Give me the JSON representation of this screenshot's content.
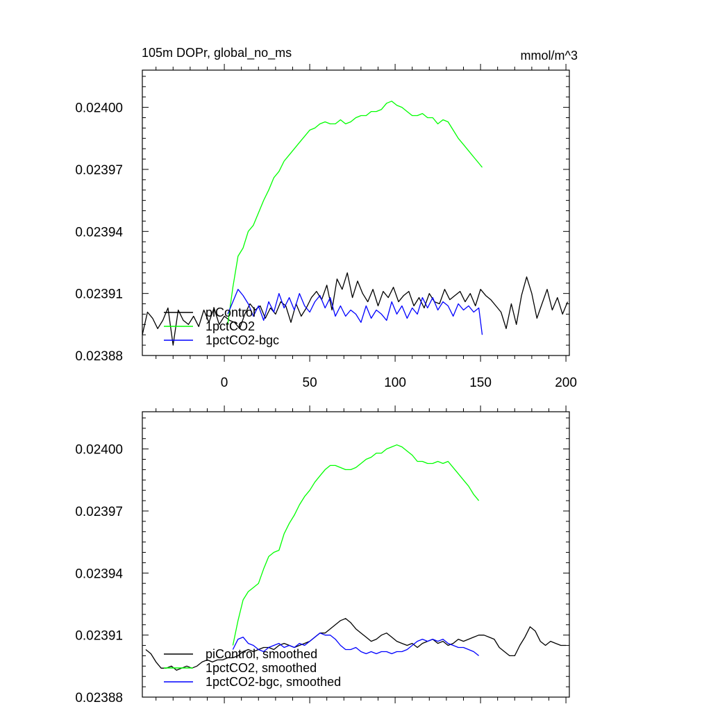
{
  "chart_data": [
    {
      "type": "line",
      "title": "105m DOPr, global_no_ms",
      "units": "mmol/m^3",
      "xlim": [
        -48,
        202
      ],
      "ylim": [
        0.02388,
        0.024018
      ],
      "xticks": [
        0,
        50,
        100,
        150,
        200
      ],
      "xtick_labels": [
        "0",
        "50",
        "100",
        "150",
        "200"
      ],
      "yticks": [
        0.02388,
        0.02391,
        0.02394,
        0.02397,
        0.024
      ],
      "ytick_labels": [
        "0.02388",
        "0.02391",
        "0.02394",
        "0.02397",
        "0.02400"
      ],
      "legend_position": "bottom-left",
      "series": [
        {
          "name": "piControl",
          "color": "#000000",
          "x": [
            -48,
            -45,
            -42,
            -39,
            -36,
            -33,
            -30,
            -27,
            -24,
            -21,
            -18,
            -15,
            -12,
            -9,
            -6,
            -3,
            0,
            3,
            6,
            9,
            12,
            15,
            18,
            21,
            24,
            27,
            30,
            33,
            36,
            39,
            42,
            45,
            48,
            51,
            54,
            57,
            60,
            63,
            66,
            69,
            72,
            75,
            78,
            81,
            84,
            87,
            90,
            93,
            96,
            99,
            102,
            105,
            108,
            111,
            114,
            117,
            120,
            123,
            126,
            129,
            132,
            135,
            138,
            141,
            144,
            147,
            150,
            153,
            156,
            159,
            162,
            165,
            168,
            171,
            174,
            177,
            180,
            183,
            186,
            189,
            192,
            195,
            198,
            201
          ],
          "y": [
            0.02389,
            0.023901,
            0.023898,
            0.023893,
            0.023897,
            0.023903,
            0.023885,
            0.023902,
            0.023897,
            0.023895,
            0.023899,
            0.023894,
            0.023902,
            0.023896,
            0.023903,
            0.023895,
            0.023899,
            0.023897,
            0.023896,
            0.023893,
            0.0239,
            0.023905,
            0.023902,
            0.023904,
            0.023898,
            0.023903,
            0.0239,
            0.023906,
            0.023904,
            0.023896,
            0.023905,
            0.023899,
            0.023903,
            0.023908,
            0.023911,
            0.023907,
            0.023914,
            0.023902,
            0.023917,
            0.023912,
            0.02392,
            0.023908,
            0.023916,
            0.02391,
            0.023906,
            0.023912,
            0.023904,
            0.023911,
            0.023908,
            0.023913,
            0.023906,
            0.023909,
            0.023911,
            0.023904,
            0.023908,
            0.023903,
            0.02391,
            0.023906,
            0.023905,
            0.023912,
            0.023907,
            0.023909,
            0.023911,
            0.023906,
            0.02391,
            0.023904,
            0.023912,
            0.023909,
            0.023907,
            0.023904,
            0.023901,
            0.023893,
            0.023905,
            0.023895,
            0.023909,
            0.023918,
            0.02391,
            0.023898,
            0.023905,
            0.023912,
            0.023902,
            0.023908,
            0.0239,
            0.023906
          ]
        },
        {
          "name": "1pctCO2",
          "color": "#00ff00",
          "x": [
            2,
            5,
            8,
            11,
            14,
            17,
            20,
            23,
            26,
            29,
            32,
            35,
            38,
            41,
            44,
            47,
            50,
            53,
            56,
            59,
            62,
            65,
            68,
            71,
            74,
            77,
            80,
            83,
            86,
            89,
            92,
            95,
            98,
            101,
            104,
            107,
            110,
            113,
            116,
            119,
            122,
            125,
            128,
            131,
            134,
            137,
            140,
            143,
            146,
            149,
            151
          ],
          "y": [
            0.023895,
            0.023913,
            0.023928,
            0.023932,
            0.02394,
            0.023943,
            0.023949,
            0.023955,
            0.02396,
            0.023966,
            0.023969,
            0.023974,
            0.023977,
            0.02398,
            0.023983,
            0.023986,
            0.023989,
            0.02399,
            0.023992,
            0.023993,
            0.023992,
            0.023992,
            0.023994,
            0.023992,
            0.023993,
            0.023995,
            0.023996,
            0.023996,
            0.023998,
            0.023998,
            0.023999,
            0.024002,
            0.024003,
            0.024001,
            0.024,
            0.023998,
            0.023996,
            0.023996,
            0.023997,
            0.023995,
            0.023995,
            0.023992,
            0.023994,
            0.023993,
            0.023989,
            0.023985,
            0.023982,
            0.023979,
            0.023976,
            0.023973,
            0.023971
          ]
        },
        {
          "name": "1pctCO2-bgc",
          "color": "#0000ff",
          "x": [
            2,
            5,
            8,
            11,
            14,
            17,
            20,
            23,
            26,
            29,
            32,
            35,
            38,
            41,
            44,
            47,
            50,
            53,
            56,
            59,
            62,
            65,
            68,
            71,
            74,
            77,
            80,
            83,
            86,
            89,
            92,
            95,
            98,
            101,
            104,
            107,
            110,
            113,
            116,
            119,
            122,
            125,
            128,
            131,
            134,
            137,
            140,
            143,
            146,
            149,
            151
          ],
          "y": [
            0.0239,
            0.023906,
            0.023912,
            0.023909,
            0.023905,
            0.023899,
            0.023904,
            0.023897,
            0.023906,
            0.023901,
            0.02391,
            0.023903,
            0.023908,
            0.023902,
            0.02391,
            0.023904,
            0.023901,
            0.023906,
            0.023909,
            0.023903,
            0.023908,
            0.023899,
            0.023904,
            0.023899,
            0.023902,
            0.0239,
            0.023896,
            0.023904,
            0.023898,
            0.023902,
            0.0239,
            0.023897,
            0.023906,
            0.0239,
            0.023904,
            0.023898,
            0.023903,
            0.0239,
            0.023908,
            0.023903,
            0.023908,
            0.023902,
            0.023906,
            0.023904,
            0.023899,
            0.023905,
            0.023902,
            0.023904,
            0.023901,
            0.023903,
            0.02389
          ]
        }
      ]
    },
    {
      "type": "line",
      "xlim": [
        -48,
        202
      ],
      "ylim": [
        0.02388,
        0.024018
      ],
      "xticks": [
        0,
        50,
        100,
        150,
        200
      ],
      "yticks": [
        0.02388,
        0.02391,
        0.02394,
        0.02397,
        0.024
      ],
      "ytick_labels": [
        "0.02388",
        "0.02391",
        "0.02394",
        "0.02397",
        "0.02400"
      ],
      "legend_position": "bottom-left",
      "series": [
        {
          "name": "piControl, smoothed",
          "color": "#000000",
          "x": [
            -46,
            -43,
            -40,
            -37,
            -34,
            -31,
            -28,
            -25,
            -22,
            -19,
            -16,
            -13,
            -10,
            -7,
            -4,
            -1,
            2,
            5,
            8,
            11,
            14,
            17,
            20,
            23,
            26,
            29,
            32,
            35,
            38,
            41,
            44,
            47,
            50,
            53,
            56,
            59,
            62,
            65,
            68,
            71,
            74,
            77,
            80,
            83,
            86,
            89,
            92,
            95,
            98,
            101,
            104,
            107,
            110,
            113,
            116,
            119,
            122,
            125,
            128,
            131,
            134,
            137,
            140,
            143,
            146,
            149,
            152,
            155,
            158,
            161,
            164,
            167,
            170,
            173,
            176,
            179,
            182,
            185,
            188,
            191,
            194,
            197,
            200
          ],
          "y": [
            0.023903,
            0.023901,
            0.023897,
            0.023894,
            0.023894,
            0.023895,
            0.023893,
            0.023894,
            0.023895,
            0.023894,
            0.023895,
            0.023897,
            0.023898,
            0.023897,
            0.023898,
            0.023898,
            0.023899,
            0.023899,
            0.0239,
            0.023902,
            0.023903,
            0.023902,
            0.023903,
            0.023904,
            0.023904,
            0.023903,
            0.023905,
            0.023906,
            0.023905,
            0.023904,
            0.023905,
            0.023906,
            0.023907,
            0.023909,
            0.023911,
            0.023911,
            0.023913,
            0.023915,
            0.023917,
            0.023918,
            0.023916,
            0.023913,
            0.023911,
            0.023909,
            0.023907,
            0.023908,
            0.02391,
            0.023911,
            0.023909,
            0.023907,
            0.023906,
            0.023905,
            0.023906,
            0.023904,
            0.023906,
            0.023907,
            0.023908,
            0.023906,
            0.023907,
            0.023905,
            0.023906,
            0.023908,
            0.023907,
            0.023908,
            0.023909,
            0.02391,
            0.02391,
            0.023909,
            0.023908,
            0.023904,
            0.023902,
            0.0239,
            0.0239,
            0.023905,
            0.023909,
            0.023914,
            0.023912,
            0.023907,
            0.023905,
            0.023907,
            0.023906,
            0.023905,
            0.023905
          ]
        },
        {
          "name": "1pctCO2, smoothed",
          "color": "#00ff00",
          "x": [
            5,
            8,
            11,
            14,
            17,
            20,
            23,
            26,
            29,
            32,
            35,
            38,
            41,
            44,
            47,
            50,
            53,
            56,
            59,
            62,
            65,
            68,
            71,
            74,
            77,
            80,
            83,
            86,
            89,
            92,
            95,
            98,
            101,
            104,
            107,
            110,
            113,
            116,
            119,
            122,
            125,
            128,
            131,
            134,
            137,
            140,
            143,
            146,
            149
          ],
          "y": [
            0.023905,
            0.023917,
            0.023927,
            0.023931,
            0.023933,
            0.023935,
            0.023942,
            0.023948,
            0.02395,
            0.023951,
            0.023959,
            0.023964,
            0.023968,
            0.023973,
            0.023977,
            0.02398,
            0.023984,
            0.023987,
            0.02399,
            0.023992,
            0.023992,
            0.023991,
            0.02399,
            0.02399,
            0.023991,
            0.023993,
            0.023995,
            0.023996,
            0.023998,
            0.023998,
            0.024,
            0.024001,
            0.024002,
            0.024001,
            0.023999,
            0.023997,
            0.023994,
            0.023994,
            0.023993,
            0.023993,
            0.023994,
            0.023993,
            0.023994,
            0.023991,
            0.023988,
            0.023985,
            0.023982,
            0.023978,
            0.023975
          ]
        },
        {
          "name": "1pctCO2-bgc, smoothed",
          "color": "#0000ff",
          "x": [
            5,
            8,
            11,
            14,
            17,
            20,
            23,
            26,
            29,
            32,
            35,
            38,
            41,
            44,
            47,
            50,
            53,
            56,
            59,
            62,
            65,
            68,
            71,
            74,
            77,
            80,
            83,
            86,
            89,
            92,
            95,
            98,
            101,
            104,
            107,
            110,
            113,
            116,
            119,
            122,
            125,
            128,
            131,
            134,
            137,
            140,
            143,
            146,
            149
          ],
          "y": [
            0.023903,
            0.023908,
            0.023909,
            0.023906,
            0.023905,
            0.023903,
            0.023902,
            0.023904,
            0.023905,
            0.023906,
            0.023904,
            0.023905,
            0.023904,
            0.023906,
            0.023905,
            0.023907,
            0.023909,
            0.023911,
            0.02391,
            0.02391,
            0.023908,
            0.023905,
            0.023903,
            0.023903,
            0.023904,
            0.023902,
            0.023901,
            0.023902,
            0.023901,
            0.023902,
            0.023902,
            0.023901,
            0.023902,
            0.023902,
            0.023903,
            0.023905,
            0.023907,
            0.023908,
            0.023907,
            0.023908,
            0.023907,
            0.023908,
            0.023906,
            0.023905,
            0.023904,
            0.023904,
            0.023903,
            0.023902,
            0.0239
          ]
        }
      ]
    }
  ]
}
